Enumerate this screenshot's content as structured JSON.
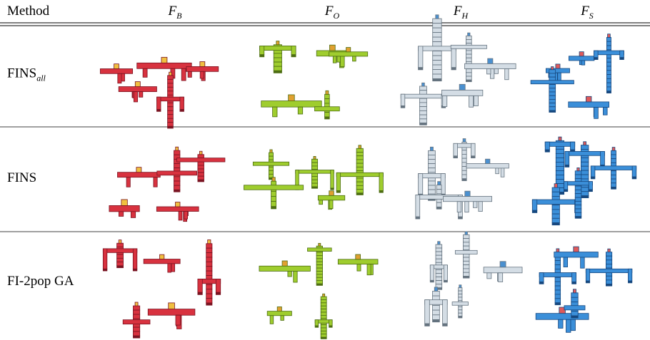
{
  "header": {
    "method": "Method",
    "columns": [
      {
        "base": "F",
        "sub": "B"
      },
      {
        "base": "F",
        "sub": "O"
      },
      {
        "base": "F",
        "sub": "H"
      },
      {
        "base": "F",
        "sub": "S"
      }
    ]
  },
  "rows": [
    {
      "base": "FINS",
      "sub": "all"
    },
    {
      "base": "FINS"
    },
    {
      "base": "FI-2pop GA"
    }
  ]
}
